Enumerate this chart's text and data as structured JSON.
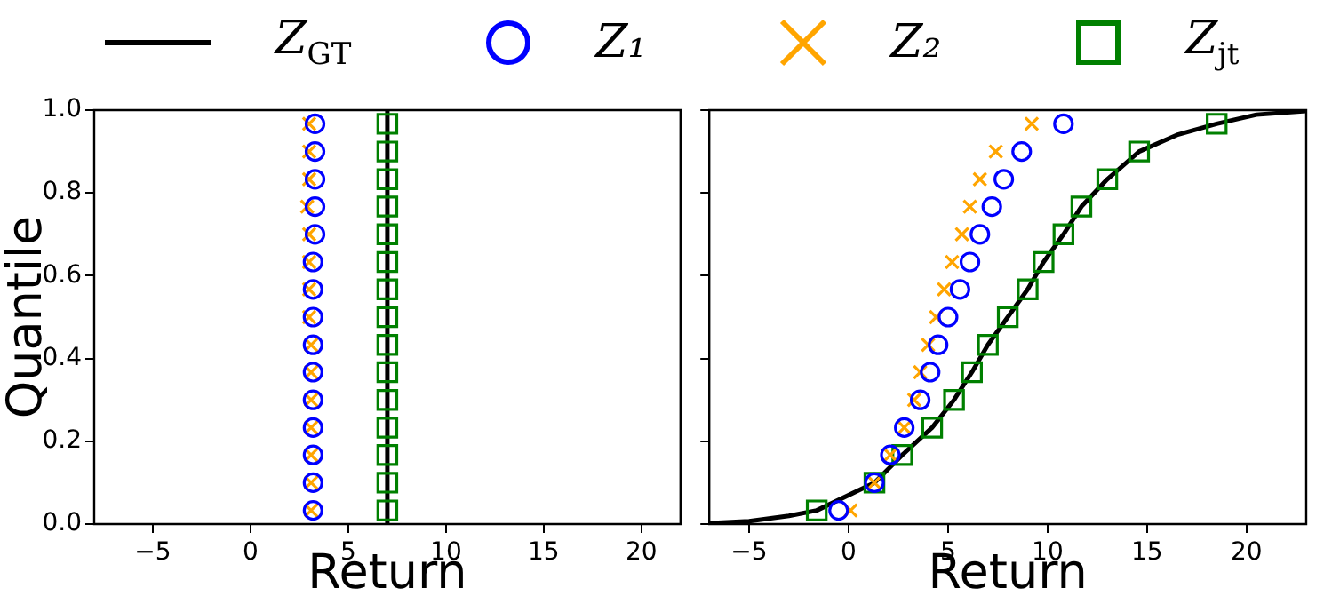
{
  "chart_data": [
    {
      "type": "scatter",
      "xlabel": "Return",
      "ylabel": "Quantile",
      "xlim": [
        -8,
        22
      ],
      "xticks": [
        {
          "value": -5,
          "label": "−5"
        },
        0,
        5,
        10,
        15,
        20
      ],
      "ylim": [
        0,
        1
      ],
      "yticks": [
        {
          "value": 0,
          "label": "0.0"
        },
        {
          "value": 0.2,
          "label": "0.2"
        },
        {
          "value": 0.4,
          "label": "0.4"
        },
        {
          "value": 0.6,
          "label": "0.6"
        },
        {
          "value": 0.8,
          "label": "0.8"
        },
        {
          "value": 1,
          "label": "1.0"
        }
      ],
      "grid": false,
      "legend": "top",
      "series": [
        {
          "name": "Z$_{GT}$",
          "type": "line",
          "color": "#000000",
          "marker": "none",
          "line_style": "solid",
          "x": [
            7,
            7
          ],
          "values": [
            0,
            1
          ]
        },
        {
          "name": "Z₁",
          "color": "#0000ff",
          "marker": "circle",
          "x": [
            3.2,
            3.2,
            3.2,
            3.2,
            3.2,
            3.2,
            3.2,
            3.2,
            3.2,
            3.2,
            3.3,
            3.3,
            3.3,
            3.3,
            3.3
          ],
          "values": [
            0.033,
            0.1,
            0.167,
            0.233,
            0.3,
            0.367,
            0.433,
            0.5,
            0.567,
            0.633,
            0.7,
            0.767,
            0.833,
            0.9,
            0.967
          ]
        },
        {
          "name": "Z₂",
          "color": "#ffa500",
          "marker": "cross",
          "x": [
            3.1,
            3.1,
            3.1,
            3.1,
            3.1,
            3.1,
            3.1,
            3.0,
            3.0,
            3.0,
            3.0,
            2.9,
            3.0,
            3.0,
            3.0
          ],
          "values": [
            0.033,
            0.1,
            0.167,
            0.233,
            0.3,
            0.367,
            0.433,
            0.5,
            0.567,
            0.633,
            0.7,
            0.767,
            0.833,
            0.9,
            0.967
          ]
        },
        {
          "name": "Z$_{jt}$",
          "color": "#008000",
          "marker": "square",
          "x": [
            7,
            7,
            7,
            7,
            7,
            7,
            7,
            7,
            7,
            7,
            7,
            7,
            7,
            7,
            7
          ],
          "values": [
            0.033,
            0.1,
            0.167,
            0.233,
            0.3,
            0.367,
            0.433,
            0.5,
            0.567,
            0.633,
            0.7,
            0.767,
            0.833,
            0.9,
            0.967
          ]
        }
      ]
    },
    {
      "type": "scatter",
      "xlabel": "Return",
      "xlim": [
        -7,
        23
      ],
      "xticks": [
        {
          "value": -5,
          "label": "−5"
        },
        0,
        5,
        10,
        15,
        20
      ],
      "ylim": [
        0,
        1
      ],
      "yticks": [
        0,
        0.2,
        0.4,
        0.6,
        0.8,
        1
      ],
      "tick_labels": "x",
      "grid": false,
      "series": [
        {
          "type": "line",
          "color": "#000000",
          "marker": "none",
          "line_style": "solid",
          "x": [
            -7,
            -5,
            -3,
            -1.6,
            1.3,
            2.7,
            4.2,
            5.3,
            6.2,
            7.0,
            8.0,
            9.0,
            9.8,
            10.8,
            11.7,
            13.0,
            14.6,
            16.5,
            18.5,
            20.5,
            23
          ],
          "values": [
            0.002,
            0.007,
            0.02,
            0.033,
            0.1,
            0.167,
            0.233,
            0.3,
            0.367,
            0.433,
            0.5,
            0.567,
            0.633,
            0.7,
            0.767,
            0.833,
            0.9,
            0.94,
            0.967,
            0.989,
            0.998
          ]
        },
        {
          "color": "#0000ff",
          "marker": "circle",
          "x": [
            -0.5,
            1.3,
            2.1,
            2.8,
            3.6,
            4.1,
            4.5,
            5.0,
            5.6,
            6.1,
            6.6,
            7.2,
            7.8,
            8.7,
            10.8
          ],
          "values": [
            0.033,
            0.1,
            0.167,
            0.233,
            0.3,
            0.367,
            0.433,
            0.5,
            0.567,
            0.633,
            0.7,
            0.767,
            0.833,
            0.9,
            0.967
          ]
        },
        {
          "color": "#ffa500",
          "marker": "cross",
          "x": [
            0.1,
            1.3,
            2.1,
            2.8,
            3.3,
            3.6,
            4.0,
            4.4,
            4.8,
            5.2,
            5.7,
            6.1,
            6.6,
            7.4,
            9.2
          ],
          "values": [
            0.033,
            0.1,
            0.167,
            0.233,
            0.3,
            0.367,
            0.433,
            0.5,
            0.567,
            0.633,
            0.7,
            0.767,
            0.833,
            0.9,
            0.967
          ]
        },
        {
          "color": "#008000",
          "marker": "square",
          "x": [
            -1.6,
            1.3,
            2.7,
            4.2,
            5.3,
            6.2,
            7.0,
            8.0,
            9.0,
            9.8,
            10.8,
            11.7,
            13.0,
            14.6,
            18.5
          ],
          "values": [
            0.033,
            0.1,
            0.167,
            0.233,
            0.3,
            0.367,
            0.433,
            0.5,
            0.567,
            0.633,
            0.7,
            0.767,
            0.833,
            0.9,
            0.967
          ]
        }
      ]
    }
  ]
}
